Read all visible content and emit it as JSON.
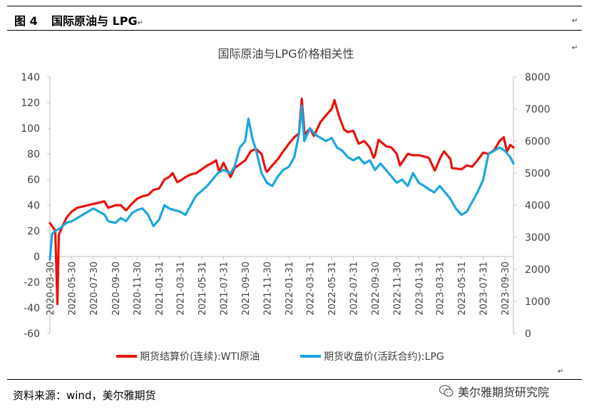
{
  "header": {
    "figure_label": "图 4",
    "figure_title": "国际原油与 LPG"
  },
  "para_mark": "↵",
  "footer": {
    "source": "资料来源：wind，美尔雅期货",
    "watermark": "美尔雅期货研究院"
  },
  "chart_data": {
    "type": "line",
    "title": "国际原油与LPG价格相关性",
    "y_left": {
      "min": -60,
      "max": 140,
      "ticks": [
        -60,
        -40,
        -20,
        0,
        20,
        40,
        60,
        80,
        100,
        120,
        140
      ]
    },
    "y_right": {
      "min": 0,
      "max": 8000,
      "ticks": [
        0,
        1000,
        2000,
        3000,
        4000,
        5000,
        6000,
        7000,
        8000
      ]
    },
    "x_ticks": [
      "2020-03-30",
      "2020-05-30",
      "2020-07-30",
      "2020-09-30",
      "2020-11-30",
      "2021-01-31",
      "2021-03-31",
      "2021-05-31",
      "2021-07-31",
      "2021-09-30",
      "2021-11-30",
      "2022-01-31",
      "2022-03-31",
      "2022-05-31",
      "2022-07-31",
      "2022-09-30",
      "2022-11-30",
      "2023-01-31",
      "2023-03-31",
      "2023-05-31",
      "2023-07-31",
      "2023-09-30"
    ],
    "legend_position": "bottom",
    "series": [
      {
        "name": "期货结算价(连续):WTI原油",
        "axis": "left",
        "color": "#e8120c",
        "points": [
          [
            "2020-03-30",
            26
          ],
          [
            "2020-04-07",
            23
          ],
          [
            "2020-04-14",
            20
          ],
          [
            "2020-04-20",
            -37
          ],
          [
            "2020-04-24",
            17
          ],
          [
            "2020-05-05",
            24
          ],
          [
            "2020-05-15",
            30
          ],
          [
            "2020-05-30",
            35
          ],
          [
            "2020-06-15",
            38
          ],
          [
            "2020-06-30",
            39
          ],
          [
            "2020-07-15",
            40
          ],
          [
            "2020-07-30",
            41
          ],
          [
            "2020-08-15",
            42
          ],
          [
            "2020-08-30",
            43
          ],
          [
            "2020-09-10",
            38
          ],
          [
            "2020-09-30",
            40
          ],
          [
            "2020-10-15",
            40
          ],
          [
            "2020-10-30",
            36
          ],
          [
            "2020-11-15",
            41
          ],
          [
            "2020-11-30",
            45
          ],
          [
            "2020-12-15",
            47
          ],
          [
            "2020-12-31",
            48
          ],
          [
            "2021-01-15",
            52
          ],
          [
            "2021-01-31",
            53
          ],
          [
            "2021-02-15",
            60
          ],
          [
            "2021-02-28",
            62
          ],
          [
            "2021-03-10",
            65
          ],
          [
            "2021-03-23",
            58
          ],
          [
            "2021-03-31",
            59
          ],
          [
            "2021-04-15",
            62
          ],
          [
            "2021-04-30",
            64
          ],
          [
            "2021-05-15",
            65
          ],
          [
            "2021-05-31",
            68
          ],
          [
            "2021-06-15",
            71
          ],
          [
            "2021-06-30",
            73
          ],
          [
            "2021-07-10",
            75
          ],
          [
            "2021-07-19",
            66
          ],
          [
            "2021-07-31",
            73
          ],
          [
            "2021-08-20",
            62
          ],
          [
            "2021-08-31",
            69
          ],
          [
            "2021-09-15",
            72
          ],
          [
            "2021-09-30",
            75
          ],
          [
            "2021-10-15",
            82
          ],
          [
            "2021-10-30",
            84
          ],
          [
            "2021-11-15",
            80
          ],
          [
            "2021-11-26",
            68
          ],
          [
            "2021-11-30",
            66
          ],
          [
            "2021-12-15",
            71
          ],
          [
            "2021-12-31",
            76
          ],
          [
            "2022-01-15",
            82
          ],
          [
            "2022-01-31",
            88
          ],
          [
            "2022-02-15",
            93
          ],
          [
            "2022-02-28",
            96
          ],
          [
            "2022-03-08",
            123
          ],
          [
            "2022-03-16",
            95
          ],
          [
            "2022-03-31",
            100
          ],
          [
            "2022-04-11",
            94
          ],
          [
            "2022-04-30",
            105
          ],
          [
            "2022-05-15",
            110
          ],
          [
            "2022-05-31",
            115
          ],
          [
            "2022-06-08",
            122
          ],
          [
            "2022-06-20",
            110
          ],
          [
            "2022-07-05",
            99
          ],
          [
            "2022-07-15",
            97
          ],
          [
            "2022-07-31",
            98
          ],
          [
            "2022-08-15",
            88
          ],
          [
            "2022-08-31",
            90
          ],
          [
            "2022-09-15",
            85
          ],
          [
            "2022-09-26",
            77
          ],
          [
            "2022-09-30",
            79
          ],
          [
            "2022-10-10",
            91
          ],
          [
            "2022-10-31",
            86
          ],
          [
            "2022-11-15",
            85
          ],
          [
            "2022-11-30",
            80
          ],
          [
            "2022-12-09",
            71
          ],
          [
            "2022-12-31",
            80
          ],
          [
            "2023-01-15",
            79
          ],
          [
            "2023-01-31",
            79
          ],
          [
            "2023-02-15",
            78
          ],
          [
            "2023-02-28",
            77
          ],
          [
            "2023-03-17",
            67
          ],
          [
            "2023-03-31",
            76
          ],
          [
            "2023-04-12",
            82
          ],
          [
            "2023-04-30",
            76
          ],
          [
            "2023-05-04",
            69
          ],
          [
            "2023-05-31",
            68
          ],
          [
            "2023-06-15",
            71
          ],
          [
            "2023-06-30",
            70
          ],
          [
            "2023-07-15",
            75
          ],
          [
            "2023-07-31",
            81
          ],
          [
            "2023-08-15",
            80
          ],
          [
            "2023-08-31",
            83
          ],
          [
            "2023-09-15",
            90
          ],
          [
            "2023-09-27",
            93
          ],
          [
            "2023-10-06",
            82
          ],
          [
            "2023-10-15",
            87
          ],
          [
            "2023-10-24",
            85
          ]
        ]
      },
      {
        "name": "期货收盘价(活跃合约):LPG",
        "axis": "right",
        "color": "#1ba6e0",
        "points": [
          [
            "2020-03-30",
            2300
          ],
          [
            "2020-04-05",
            3100
          ],
          [
            "2020-04-15",
            3200
          ],
          [
            "2020-04-30",
            3300
          ],
          [
            "2020-05-15",
            3450
          ],
          [
            "2020-05-30",
            3500
          ],
          [
            "2020-06-15",
            3600
          ],
          [
            "2020-06-30",
            3700
          ],
          [
            "2020-07-15",
            3800
          ],
          [
            "2020-07-30",
            3900
          ],
          [
            "2020-08-15",
            3800
          ],
          [
            "2020-08-31",
            3700
          ],
          [
            "2020-09-10",
            3500
          ],
          [
            "2020-09-30",
            3450
          ],
          [
            "2020-10-15",
            3600
          ],
          [
            "2020-10-30",
            3500
          ],
          [
            "2020-11-15",
            3750
          ],
          [
            "2020-11-30",
            3850
          ],
          [
            "2020-12-15",
            3900
          ],
          [
            "2020-12-31",
            3700
          ],
          [
            "2021-01-15",
            3350
          ],
          [
            "2021-01-31",
            3550
          ],
          [
            "2021-02-15",
            4000
          ],
          [
            "2021-02-28",
            3900
          ],
          [
            "2021-03-15",
            3850
          ],
          [
            "2021-03-31",
            3800
          ],
          [
            "2021-04-15",
            3700
          ],
          [
            "2021-04-30",
            4000
          ],
          [
            "2021-05-15",
            4300
          ],
          [
            "2021-05-31",
            4450
          ],
          [
            "2021-06-15",
            4600
          ],
          [
            "2021-06-30",
            4800
          ],
          [
            "2021-07-15",
            5000
          ],
          [
            "2021-07-31",
            5100
          ],
          [
            "2021-08-20",
            5000
          ],
          [
            "2021-08-31",
            5200
          ],
          [
            "2021-09-15",
            5800
          ],
          [
            "2021-09-30",
            6000
          ],
          [
            "2021-10-09",
            6700
          ],
          [
            "2021-10-20",
            6100
          ],
          [
            "2021-10-31",
            5700
          ],
          [
            "2021-11-15",
            5000
          ],
          [
            "2021-11-30",
            4700
          ],
          [
            "2021-12-15",
            4600
          ],
          [
            "2021-12-31",
            4900
          ],
          [
            "2022-01-15",
            5100
          ],
          [
            "2022-01-31",
            5200
          ],
          [
            "2022-02-15",
            5500
          ],
          [
            "2022-02-28",
            6200
          ],
          [
            "2022-03-08",
            7100
          ],
          [
            "2022-03-15",
            6000
          ],
          [
            "2022-03-31",
            6400
          ],
          [
            "2022-04-15",
            6200
          ],
          [
            "2022-04-30",
            6100
          ],
          [
            "2022-05-15",
            6000
          ],
          [
            "2022-05-31",
            6100
          ],
          [
            "2022-06-15",
            5800
          ],
          [
            "2022-06-30",
            5700
          ],
          [
            "2022-07-15",
            5500
          ],
          [
            "2022-07-31",
            5400
          ],
          [
            "2022-08-15",
            5500
          ],
          [
            "2022-08-31",
            5300
          ],
          [
            "2022-09-15",
            5400
          ],
          [
            "2022-09-30",
            5100
          ],
          [
            "2022-10-15",
            5300
          ],
          [
            "2022-10-31",
            5100
          ],
          [
            "2022-11-15",
            4900
          ],
          [
            "2022-11-30",
            4700
          ],
          [
            "2022-12-15",
            4800
          ],
          [
            "2022-12-31",
            4600
          ],
          [
            "2023-01-15",
            5000
          ],
          [
            "2023-01-31",
            4700
          ],
          [
            "2023-02-15",
            4600
          ],
          [
            "2023-02-28",
            4500
          ],
          [
            "2023-03-15",
            4400
          ],
          [
            "2023-03-31",
            4600
          ],
          [
            "2023-04-15",
            4400
          ],
          [
            "2023-04-30",
            4200
          ],
          [
            "2023-05-15",
            3900
          ],
          [
            "2023-05-31",
            3700
          ],
          [
            "2023-06-15",
            3800
          ],
          [
            "2023-06-30",
            4100
          ],
          [
            "2023-07-15",
            4400
          ],
          [
            "2023-07-31",
            4800
          ],
          [
            "2023-08-15",
            5600
          ],
          [
            "2023-08-31",
            5700
          ],
          [
            "2023-09-15",
            5800
          ],
          [
            "2023-09-30",
            5700
          ],
          [
            "2023-10-15",
            5500
          ],
          [
            "2023-10-24",
            5300
          ]
        ]
      }
    ]
  }
}
